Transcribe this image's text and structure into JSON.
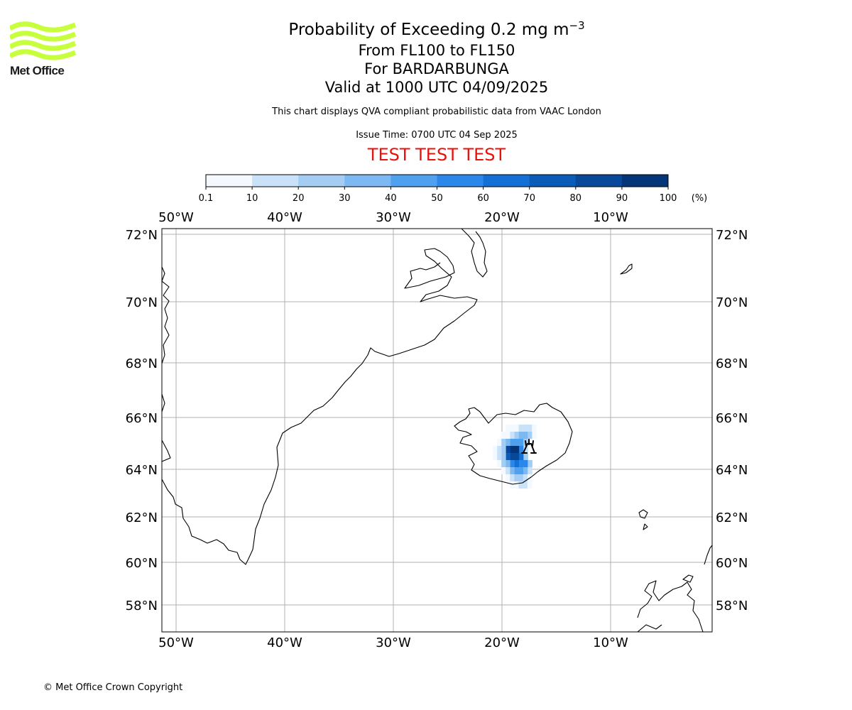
{
  "logo": {
    "text": "Met Office",
    "wave_color": "#c8ff3c"
  },
  "header": {
    "title_main": "Probability of Exceeding 0.2 mg m",
    "title_exponent": "−3",
    "level_range": "From FL100 to FL150",
    "volcano": "For BARDARBUNGA",
    "valid": "Valid at 1000 UTC 04/09/2025",
    "description": "This chart displays QVA compliant probabilistic data from VAAC London",
    "issue_time": "Issue Time: 0700 UTC 04 Sep 2025",
    "test_banner": "TEST TEST TEST"
  },
  "colorbar": {
    "unit_label": "(%)",
    "tick_labels": [
      "0.1",
      "10",
      "20",
      "30",
      "40",
      "50",
      "60",
      "70",
      "80",
      "90",
      "100"
    ],
    "colors": [
      "#f3f9ff",
      "#c9e2f8",
      "#a4cdf4",
      "#7cb9f2",
      "#4fa1f0",
      "#2b88ea",
      "#1370d6",
      "#0b5bb8",
      "#08489a",
      "#053579",
      "#02254f"
    ]
  },
  "map": {
    "lon_labels": [
      "50°W",
      "40°W",
      "30°W",
      "20°W",
      "10°W"
    ],
    "lat_labels": [
      "72°N",
      "70°N",
      "68°N",
      "66°N",
      "64°N",
      "62°N",
      "60°N",
      "58°N"
    ],
    "coastline_color": "#000000",
    "grid_color": "#b0b0b0",
    "volcano_marker": "volcano-icon"
  },
  "footer": {
    "copyright": "© Met Office Crown Copyright"
  }
}
